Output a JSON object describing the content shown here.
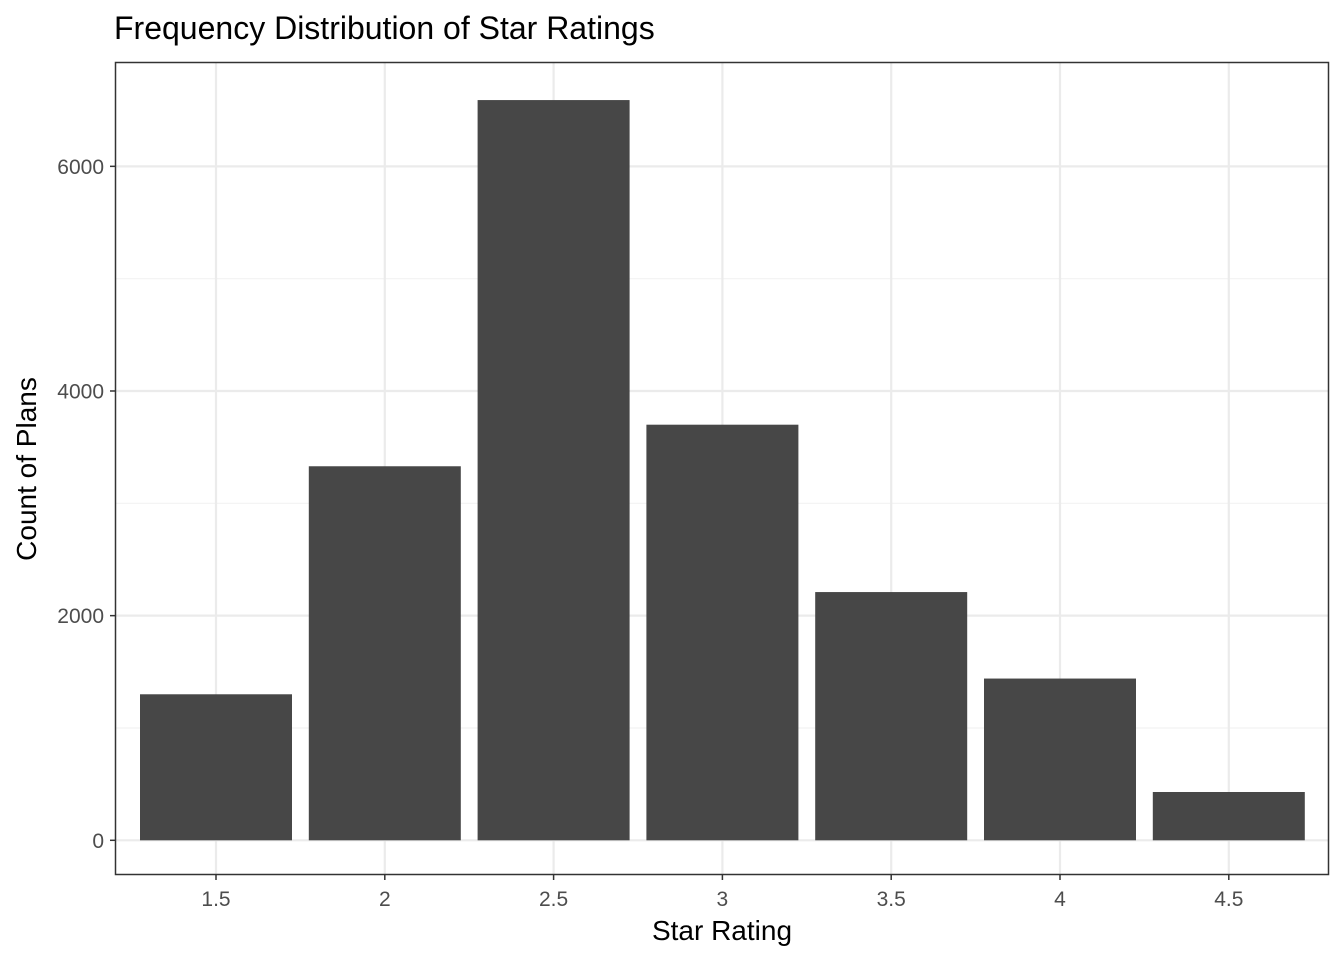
{
  "chart_data": {
    "type": "bar",
    "title": "Frequency Distribution of Star Ratings",
    "xlabel": "Star Rating",
    "ylabel": "Count of Plans",
    "categories": [
      "1.5",
      "2",
      "2.5",
      "3",
      "3.5",
      "4",
      "4.5"
    ],
    "values": [
      1300,
      3330,
      6590,
      3700,
      2210,
      1440,
      430
    ],
    "ylim": [
      -300,
      6920
    ],
    "yticks": [
      "0",
      "2000",
      "4000",
      "6000"
    ],
    "ytick_values": [
      0,
      2000,
      4000,
      6000
    ],
    "grid": true,
    "theme": "bw",
    "colors": {
      "bar": "#474747",
      "grid_major": "#ebebeb",
      "grid_minor": "#f2f2f2",
      "panel_border": "#333333",
      "tick_text": "#4d4d4d"
    }
  }
}
